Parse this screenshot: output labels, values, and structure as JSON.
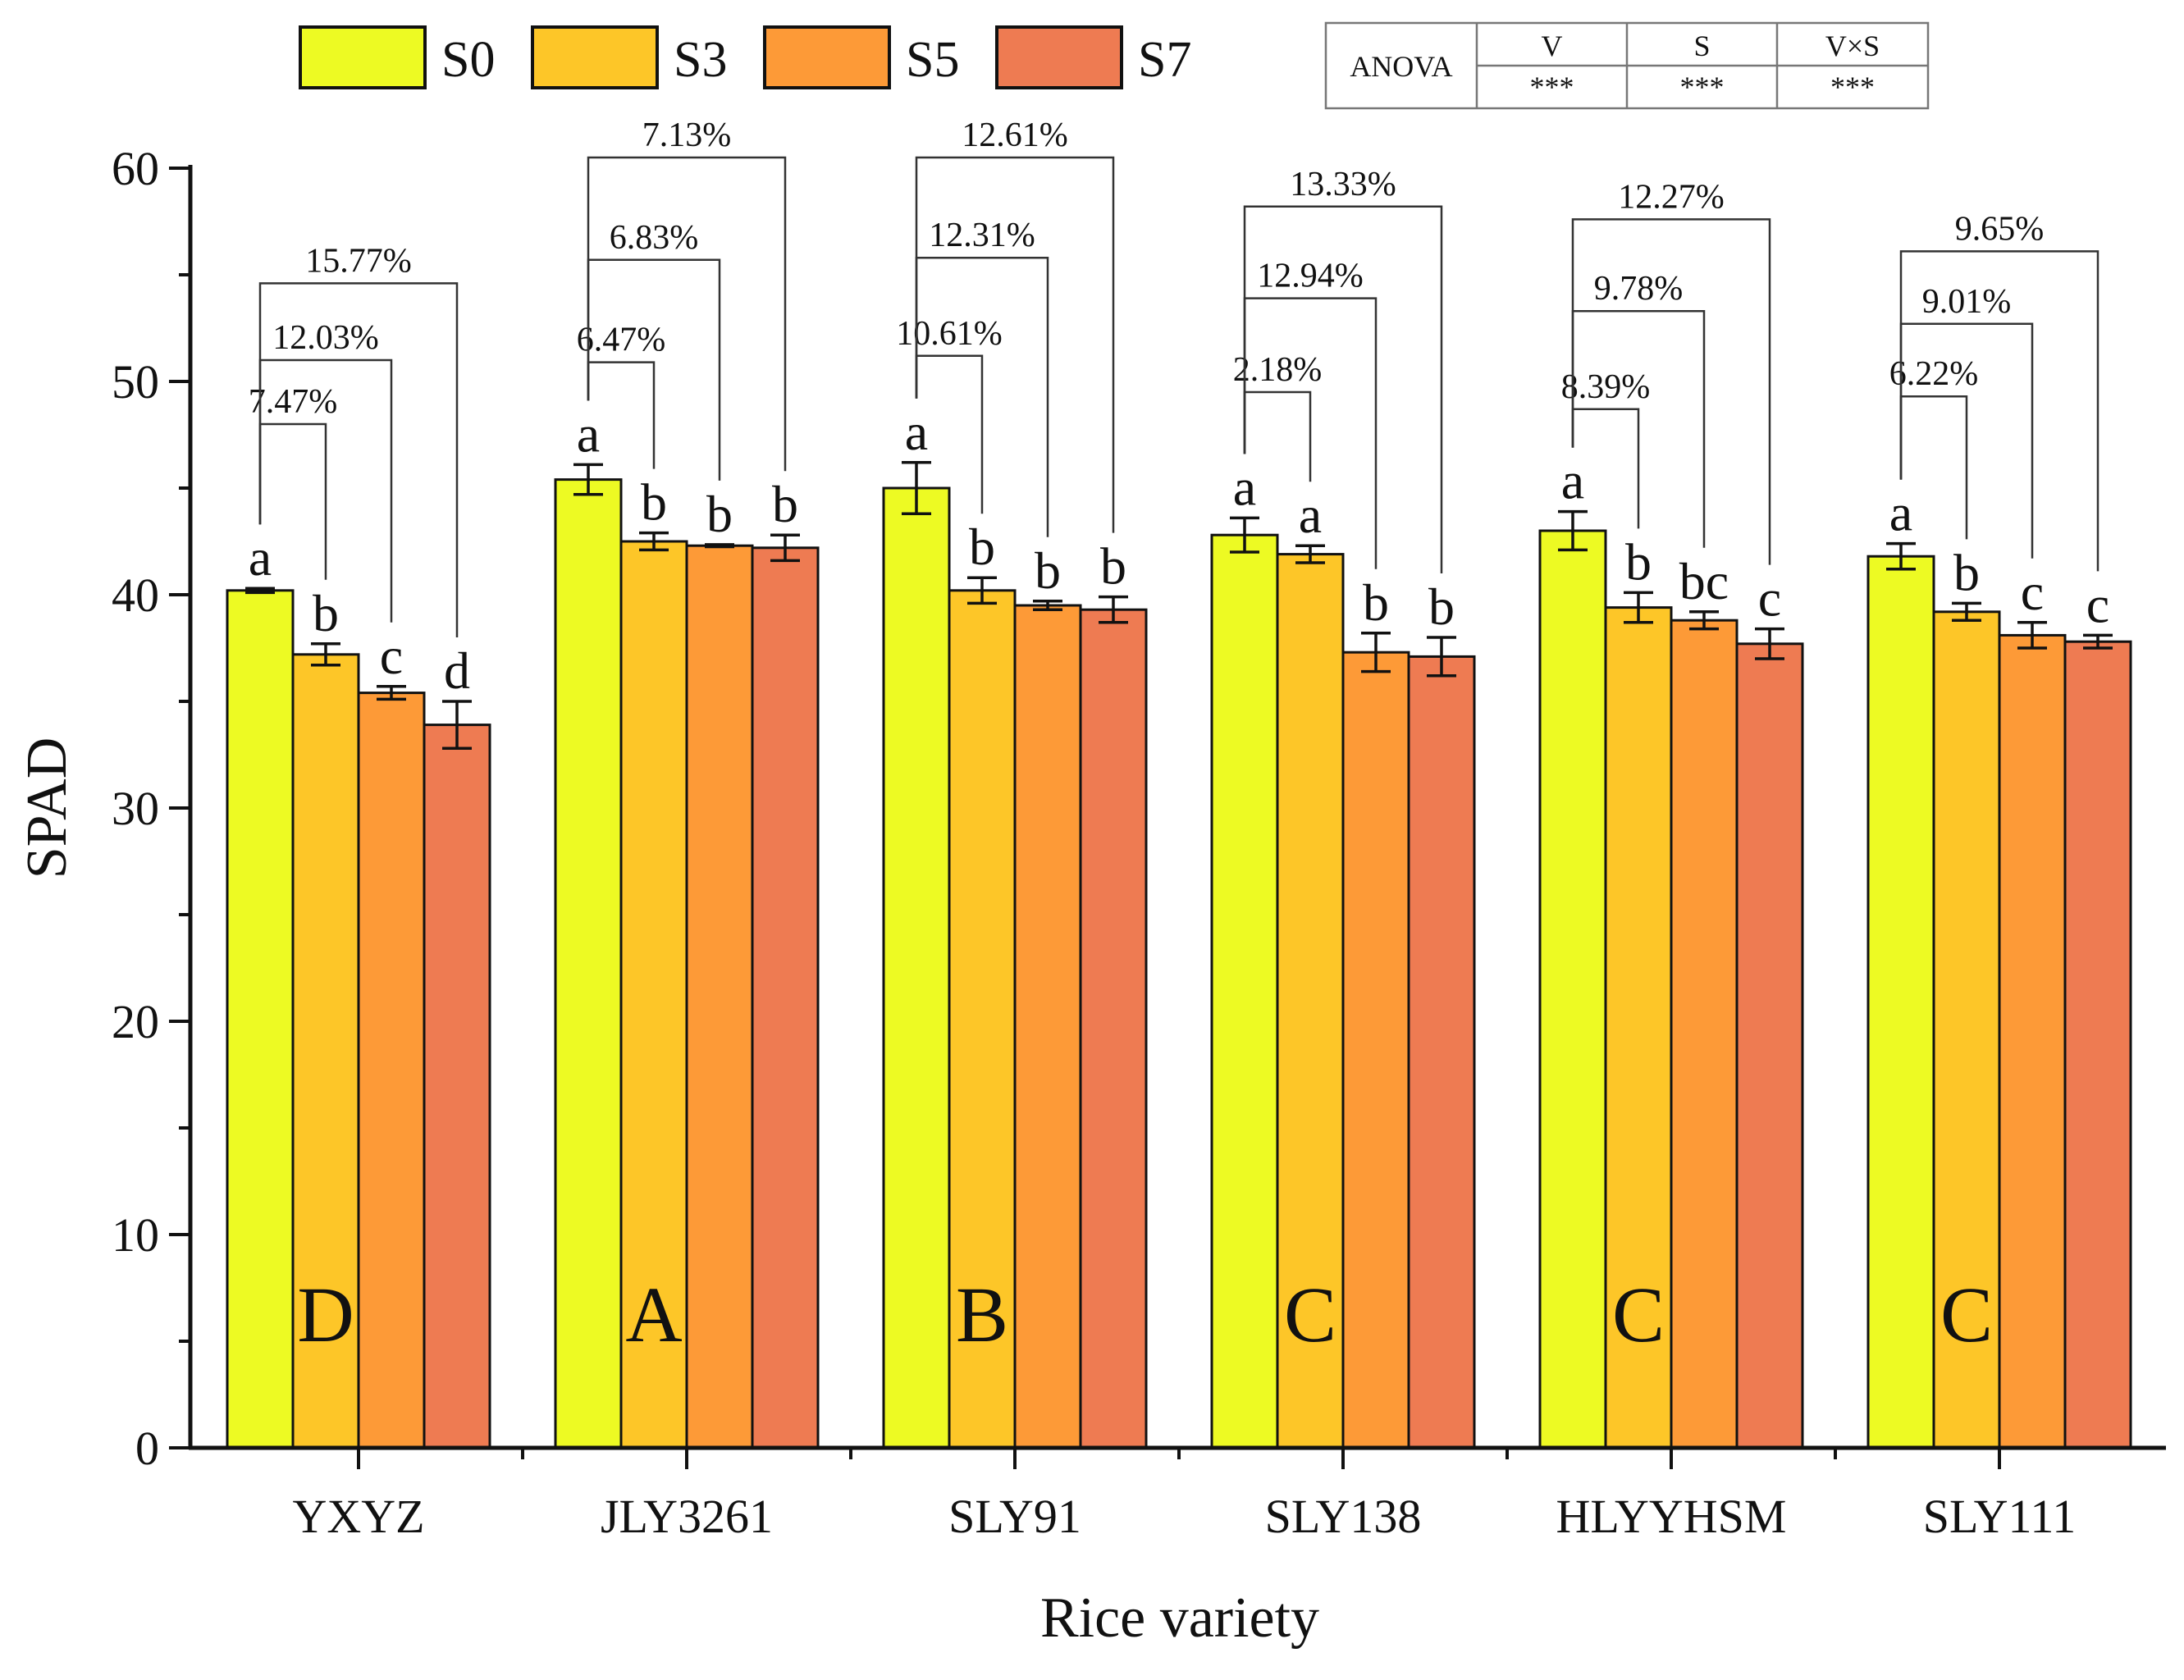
{
  "chart_data": {
    "type": "bar",
    "title": "",
    "xlabel": "Rice variety",
    "ylabel": "SPAD",
    "ylim": [
      0,
      60
    ],
    "yticks": [
      0,
      10,
      20,
      30,
      40,
      50,
      60
    ],
    "grid": false,
    "legend_position": "top",
    "categories": [
      "YXYZ",
      "JLY3261",
      "SLY91",
      "SLY138",
      "HLYYHSM",
      "SLY111"
    ],
    "series": [
      {
        "name": "S0",
        "color": "#EDFA23",
        "values": [
          40.2,
          45.4,
          45.0,
          42.8,
          43.0,
          41.8
        ],
        "errors": [
          0.1,
          0.7,
          1.2,
          0.8,
          0.9,
          0.6
        ],
        "letters": [
          "a",
          "a",
          "a",
          "a",
          "a",
          "a"
        ]
      },
      {
        "name": "S3",
        "color": "#FDC628",
        "values": [
          37.2,
          42.5,
          40.2,
          41.9,
          39.4,
          39.2
        ],
        "errors": [
          0.5,
          0.4,
          0.6,
          0.4,
          0.7,
          0.4
        ],
        "letters": [
          "b",
          "b",
          "b",
          "a",
          "b",
          "b"
        ]
      },
      {
        "name": "S5",
        "color": "#FD9A37",
        "values": [
          35.4,
          42.3,
          39.5,
          37.3,
          38.8,
          38.1
        ],
        "errors": [
          0.3,
          0.05,
          0.2,
          0.9,
          0.4,
          0.6
        ],
        "letters": [
          "c",
          "b",
          "b",
          "b",
          "bc",
          "c"
        ]
      },
      {
        "name": "S7",
        "color": "#EE7B52",
        "values": [
          33.9,
          42.2,
          39.3,
          37.1,
          37.7,
          37.8
        ],
        "errors": [
          1.1,
          0.6,
          0.6,
          0.9,
          0.7,
          0.3
        ],
        "letters": [
          "d",
          "b",
          "b",
          "b",
          "c",
          "c"
        ]
      }
    ],
    "reductions": [
      [
        "7.47%",
        "12.03%",
        "15.77%"
      ],
      [
        "6.47%",
        "6.83%",
        "7.13%"
      ],
      [
        "10.61%",
        "12.31%",
        "12.61%"
      ],
      [
        "2.18%",
        "12.94%",
        "13.33%"
      ],
      [
        "8.39%",
        "9.78%",
        "12.27%"
      ],
      [
        "6.22%",
        "9.01%",
        "9.65%"
      ]
    ],
    "reduction_bracket_levels": [
      [
        48,
        51,
        54.6
      ],
      [
        50.9,
        55.7,
        60.5
      ],
      [
        51.2,
        55.8,
        60.5
      ],
      [
        49.5,
        53.9,
        58.2
      ],
      [
        48.7,
        53.3,
        57.6
      ],
      [
        49.3,
        52.7,
        56.1
      ]
    ],
    "variety_groups": [
      "D",
      "A",
      "B",
      "C",
      "C",
      "C"
    ],
    "anova": {
      "label": "ANOVA",
      "headers": [
        "V",
        "S",
        "V×S"
      ],
      "values": [
        "***",
        "***",
        "***"
      ]
    }
  }
}
